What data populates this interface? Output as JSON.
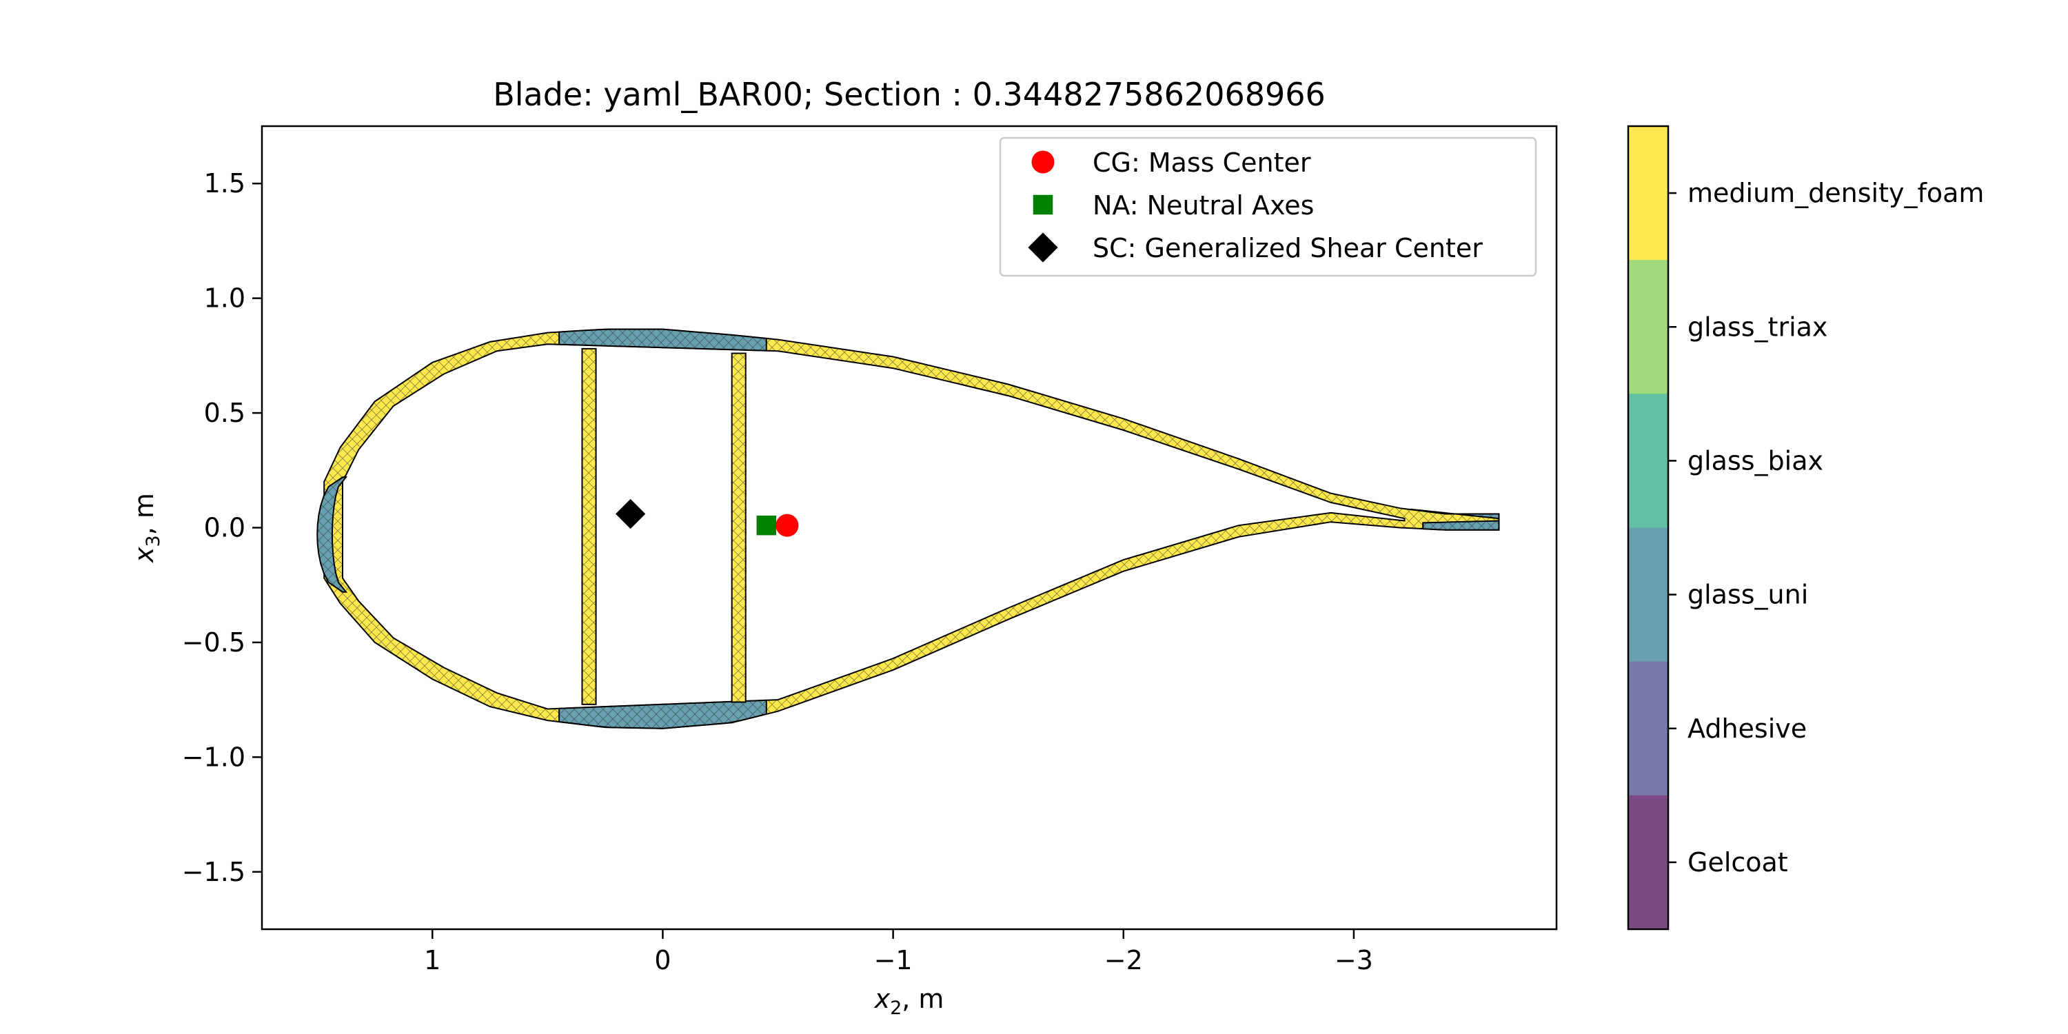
{
  "chart_data": {
    "type": "scatter",
    "title": "Blade: yaml_BAR00; Section : 0.3448275862068966",
    "xlabel": {
      "var": "x",
      "sub": "2",
      "unit": ", m"
    },
    "ylabel": {
      "var": "x",
      "sub": "3",
      "unit": ", m"
    },
    "xlim": [
      1.74,
      -3.88
    ],
    "ylim": [
      -1.75,
      1.75
    ],
    "xticks": [
      {
        "value": 1,
        "label": "1"
      },
      {
        "value": 0,
        "label": "0"
      },
      {
        "value": -1,
        "label": "−1"
      },
      {
        "value": -2,
        "label": "−2"
      },
      {
        "value": -3,
        "label": "−3"
      }
    ],
    "yticks": [
      {
        "value": 1.5,
        "label": "1.5"
      },
      {
        "value": 1.0,
        "label": "1.0"
      },
      {
        "value": 0.5,
        "label": "0.5"
      },
      {
        "value": 0.0,
        "label": "0.0"
      },
      {
        "value": -0.5,
        "label": "−0.5"
      },
      {
        "value": -1.0,
        "label": "−1.0"
      },
      {
        "value": -1.5,
        "label": "−1.5"
      }
    ],
    "grid": false,
    "legend_position": "top-right",
    "points": [
      {
        "name": "CG: Mass Center",
        "x": -0.54,
        "y": 0.01,
        "marker": "circle",
        "color": "#ff0000"
      },
      {
        "name": "NA: Neutral Axes",
        "x": -0.45,
        "y": 0.01,
        "marker": "square",
        "color": "#008000"
      },
      {
        "name": "SC: Generalized Shear Center",
        "x": 0.14,
        "y": 0.06,
        "marker": "diamond",
        "color": "#000000"
      }
    ],
    "materials": [
      {
        "name": "medium_density_foam",
        "color": "#fde94d"
      },
      {
        "name": "glass_triax",
        "color": "#a0da7d"
      },
      {
        "name": "glass_biax",
        "color": "#62c1a5"
      },
      {
        "name": "glass_uni",
        "color": "#68a0b0"
      },
      {
        "name": "Adhesive",
        "color": "#7878ab"
      },
      {
        "name": "Gelcoat",
        "color": "#7b4a85"
      }
    ],
    "section": {
      "outer_upper": [
        [
          1.47,
          0.2
        ],
        [
          1.4,
          0.35
        ],
        [
          1.25,
          0.55
        ],
        [
          1.0,
          0.72
        ],
        [
          0.75,
          0.81
        ],
        [
          0.5,
          0.85
        ],
        [
          0.25,
          0.865
        ],
        [
          0.0,
          0.865
        ],
        [
          -0.3,
          0.84
        ],
        [
          -0.5,
          0.82
        ],
        [
          -1.0,
          0.745
        ],
        [
          -1.5,
          0.625
        ],
        [
          -2.0,
          0.475
        ],
        [
          -2.5,
          0.3
        ],
        [
          -2.9,
          0.15
        ],
        [
          -3.2,
          0.085
        ],
        [
          -3.4,
          0.06
        ],
        [
          -3.63,
          0.06
        ]
      ],
      "outer_lower": [
        [
          1.47,
          -0.22
        ],
        [
          1.4,
          -0.33
        ],
        [
          1.25,
          -0.5
        ],
        [
          1.0,
          -0.66
        ],
        [
          0.75,
          -0.78
        ],
        [
          0.5,
          -0.84
        ],
        [
          0.25,
          -0.87
        ],
        [
          0.0,
          -0.875
        ],
        [
          -0.3,
          -0.85
        ],
        [
          -0.5,
          -0.8
        ],
        [
          -1.0,
          -0.62
        ],
        [
          -1.5,
          -0.4
        ],
        [
          -2.0,
          -0.19
        ],
        [
          -2.5,
          -0.04
        ],
        [
          -2.9,
          0.025
        ],
        [
          -3.2,
          0.0
        ],
        [
          -3.4,
          -0.01
        ],
        [
          -3.63,
          -0.01
        ]
      ],
      "inner_upper": [
        [
          1.39,
          0.2
        ],
        [
          1.32,
          0.34
        ],
        [
          1.17,
          0.53
        ],
        [
          0.95,
          0.67
        ],
        [
          0.72,
          0.77
        ],
        [
          0.5,
          0.8
        ],
        [
          -0.5,
          0.77
        ],
        [
          -1.0,
          0.695
        ],
        [
          -1.5,
          0.575
        ],
        [
          -2.0,
          0.425
        ],
        [
          -2.5,
          0.255
        ],
        [
          -2.9,
          0.11
        ],
        [
          -3.22,
          0.04
        ]
      ],
      "inner_lower": [
        [
          1.39,
          -0.22
        ],
        [
          1.32,
          -0.32
        ],
        [
          1.17,
          -0.48
        ],
        [
          0.95,
          -0.61
        ],
        [
          0.72,
          -0.72
        ],
        [
          0.5,
          -0.79
        ],
        [
          -0.5,
          -0.75
        ],
        [
          -1.0,
          -0.57
        ],
        [
          -1.5,
          -0.35
        ],
        [
          -2.0,
          -0.14
        ],
        [
          -2.5,
          0.01
        ],
        [
          -2.9,
          0.065
        ],
        [
          -3.22,
          0.03
        ]
      ],
      "spar_caps": [
        {
          "x0": 0.45,
          "x1": -0.45,
          "side": "upper"
        },
        {
          "x0": 0.45,
          "x1": -0.45,
          "side": "lower"
        }
      ],
      "webs": [
        {
          "x": 0.32,
          "width": 0.06,
          "y0": -0.77,
          "y1": 0.78
        },
        {
          "x": -0.33,
          "width": 0.06,
          "y0": -0.76,
          "y1": 0.76
        }
      ],
      "leading_edge": {
        "x0": 1.5,
        "x1": 1.39,
        "y0": -0.28,
        "y1": 0.22
      },
      "trailing_edge": {
        "x0": -3.25,
        "x1": -3.63
      }
    }
  }
}
